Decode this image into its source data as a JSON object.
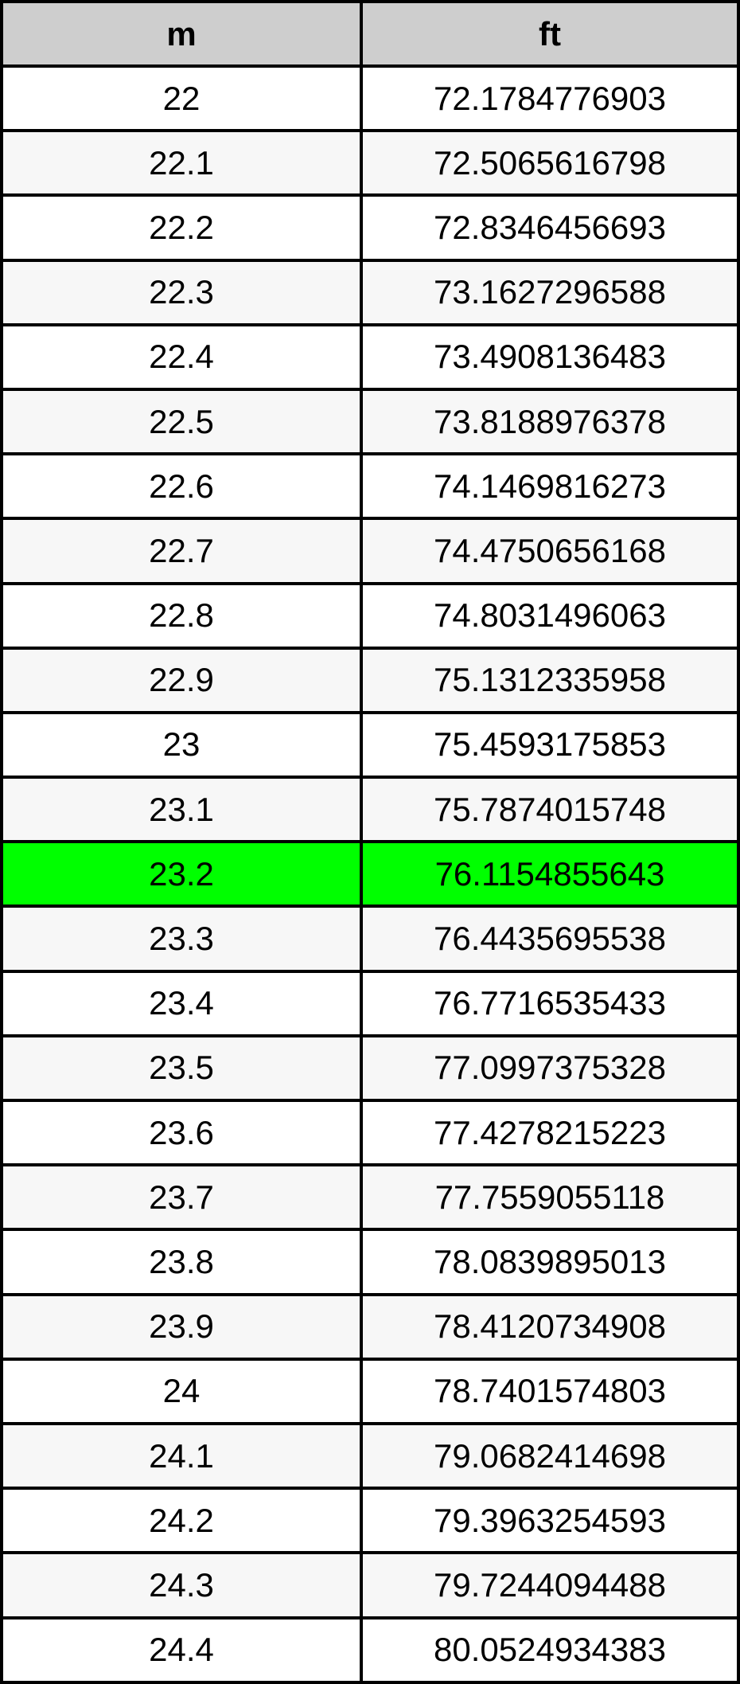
{
  "chart_data": {
    "type": "table",
    "columns": [
      "m",
      "ft"
    ],
    "rows": [
      {
        "m": "22",
        "ft": "72.1784776903"
      },
      {
        "m": "22.1",
        "ft": "72.5065616798"
      },
      {
        "m": "22.2",
        "ft": "72.8346456693"
      },
      {
        "m": "22.3",
        "ft": "73.1627296588"
      },
      {
        "m": "22.4",
        "ft": "73.4908136483"
      },
      {
        "m": "22.5",
        "ft": "73.8188976378"
      },
      {
        "m": "22.6",
        "ft": "74.1469816273"
      },
      {
        "m": "22.7",
        "ft": "74.4750656168"
      },
      {
        "m": "22.8",
        "ft": "74.8031496063"
      },
      {
        "m": "22.9",
        "ft": "75.1312335958"
      },
      {
        "m": "23",
        "ft": "75.4593175853"
      },
      {
        "m": "23.1",
        "ft": "75.7874015748"
      },
      {
        "m": "23.2",
        "ft": "76.1154855643",
        "highlight": true
      },
      {
        "m": "23.3",
        "ft": "76.4435695538"
      },
      {
        "m": "23.4",
        "ft": "76.7716535433"
      },
      {
        "m": "23.5",
        "ft": "77.0997375328"
      },
      {
        "m": "23.6",
        "ft": "77.4278215223"
      },
      {
        "m": "23.7",
        "ft": "77.7559055118"
      },
      {
        "m": "23.8",
        "ft": "78.0839895013"
      },
      {
        "m": "23.9",
        "ft": "78.4120734908"
      },
      {
        "m": "24",
        "ft": "78.7401574803"
      },
      {
        "m": "24.1",
        "ft": "79.0682414698"
      },
      {
        "m": "24.2",
        "ft": "79.3963254593"
      },
      {
        "m": "24.3",
        "ft": "79.7244094488"
      },
      {
        "m": "24.4",
        "ft": "80.0524934383"
      }
    ],
    "colors": {
      "header_bg": "#cecece",
      "row_bg": "#ffffff",
      "alt_row_bg": "#f7f7f7",
      "highlight_bg": "#00ff00",
      "border": "#000000",
      "text": "#000000"
    }
  }
}
